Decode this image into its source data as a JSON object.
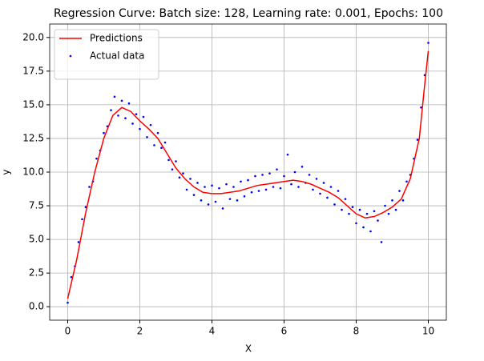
{
  "chart_data": {
    "type": "line",
    "title": "Regression Curve: Batch size: 128, Learning rate: 0.001, Epochs: 100",
    "xlabel": "X",
    "ylabel": "y",
    "xlim": [
      -0.5,
      10.5
    ],
    "ylim": [
      -1,
      21
    ],
    "xticks": [
      0,
      2,
      4,
      6,
      8,
      10
    ],
    "yticks": [
      {
        "value": 0,
        "label": "0.0"
      },
      {
        "value": 2.5,
        "label": "2.5"
      },
      {
        "value": 5,
        "label": "5.0"
      },
      {
        "value": 7.5,
        "label": "7.5"
      },
      {
        "value": 10,
        "label": "10.0"
      },
      {
        "value": 12.5,
        "label": "12.5"
      },
      {
        "value": 15,
        "label": "15.0"
      },
      {
        "value": 17.5,
        "label": "17.5"
      },
      {
        "value": 20,
        "label": "20.0"
      }
    ],
    "grid": true,
    "legend": "upper left",
    "series": [
      {
        "name": "Predictions",
        "type": "line",
        "color": "#ff0000",
        "x": [
          0,
          0.25,
          0.5,
          0.75,
          1,
          1.25,
          1.5,
          1.75,
          2,
          2.25,
          2.5,
          2.75,
          3,
          3.25,
          3.5,
          3.75,
          4,
          4.25,
          4.5,
          4.75,
          5,
          5.25,
          5.5,
          5.75,
          6,
          6.25,
          6.5,
          6.75,
          7,
          7.25,
          7.5,
          7.75,
          8,
          8.25,
          8.5,
          8.75,
          9,
          9.25,
          9.5,
          9.75,
          9.9,
          10
        ],
        "values": [
          0.6,
          3.5,
          7,
          10,
          12.5,
          14.2,
          14.8,
          14.5,
          13.8,
          13.2,
          12.5,
          11.4,
          10.3,
          9.5,
          8.9,
          8.5,
          8.4,
          8.4,
          8.5,
          8.6,
          8.8,
          9,
          9.1,
          9.2,
          9.3,
          9.4,
          9.3,
          9.1,
          8.8,
          8.5,
          8.1,
          7.5,
          6.9,
          6.6,
          6.7,
          7,
          7.4,
          8,
          9.5,
          12.5,
          16.5,
          19
        ]
      },
      {
        "name": "Actual data",
        "type": "scatter",
        "color": "#0000ff",
        "x": [
          0,
          0.1,
          0.2,
          0.3,
          0.4,
          0.5,
          0.6,
          0.7,
          0.8,
          0.9,
          1,
          1.1,
          1.2,
          1.3,
          1.4,
          1.5,
          1.6,
          1.7,
          1.8,
          1.9,
          2,
          2.1,
          2.2,
          2.3,
          2.4,
          2.5,
          2.6,
          2.7,
          2.8,
          2.9,
          3,
          3.1,
          3.2,
          3.3,
          3.4,
          3.5,
          3.6,
          3.7,
          3.8,
          3.9,
          4,
          4.1,
          4.2,
          4.3,
          4.4,
          4.5,
          4.6,
          4.7,
          4.8,
          4.9,
          5,
          5.1,
          5.2,
          5.3,
          5.4,
          5.5,
          5.6,
          5.7,
          5.8,
          5.9,
          6,
          6.1,
          6.2,
          6.3,
          6.4,
          6.5,
          6.6,
          6.7,
          6.8,
          6.9,
          7,
          7.1,
          7.2,
          7.3,
          7.4,
          7.5,
          7.6,
          7.7,
          7.8,
          7.9,
          8,
          8.1,
          8.2,
          8.3,
          8.4,
          8.5,
          8.6,
          8.7,
          8.8,
          8.9,
          9,
          9.1,
          9.2,
          9.3,
          9.4,
          9.5,
          9.6,
          9.7,
          9.8,
          9.9,
          10
        ],
        "values": [
          0.3,
          2.2,
          3,
          4.8,
          6.5,
          7.4,
          8.9,
          9.3,
          11,
          11.6,
          12.9,
          13.4,
          14.6,
          15.6,
          14.2,
          15.3,
          14,
          15.1,
          13.6,
          14.3,
          13.2,
          14.1,
          12.6,
          13.5,
          12,
          12.9,
          11.8,
          12.2,
          10.9,
          10.2,
          10.8,
          9.6,
          9.9,
          8.7,
          9.5,
          8.3,
          9.2,
          7.9,
          8.9,
          7.6,
          9,
          7.8,
          8.8,
          7.3,
          9.1,
          8,
          8.9,
          7.9,
          9.3,
          8.2,
          9.4,
          8.5,
          9.7,
          8.6,
          9.8,
          8.7,
          9.9,
          8.9,
          10.2,
          8.8,
          9.7,
          11.3,
          9.1,
          10,
          8.9,
          10.4,
          9.2,
          9.8,
          8.7,
          9.5,
          8.4,
          9.2,
          8.1,
          8.9,
          7.6,
          8.6,
          7.2,
          8,
          6.9,
          7.4,
          6.2,
          7.2,
          5.9,
          6.9,
          5.6,
          7.1,
          6.4,
          4.8,
          7.5,
          6.9,
          7.9,
          7.2,
          8.6,
          7.9,
          9.3,
          9.8,
          11,
          12.4,
          14.8,
          17.2,
          19.6
        ]
      }
    ]
  }
}
